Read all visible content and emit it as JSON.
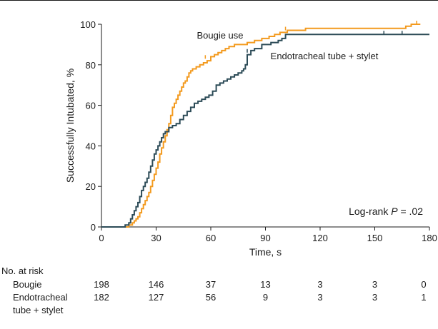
{
  "chart_data": {
    "type": "line",
    "subtype": "kaplan-meier",
    "xlabel": "Time, s",
    "ylabel": "Successfully Intubated, %",
    "xlim": [
      0,
      180
    ],
    "ylim": [
      0,
      100
    ],
    "x_ticks": [
      0,
      30,
      60,
      90,
      120,
      150,
      180
    ],
    "y_ticks": [
      0,
      20,
      40,
      60,
      80,
      100
    ],
    "grid": false,
    "annotation": {
      "prefix": "Log-rank ",
      "p_symbol": "P",
      "suffix": " = .02"
    },
    "colors": {
      "bougie": "#f39a1e",
      "stylet": "#2c4b57",
      "axis": "#1a1a1a"
    },
    "series": [
      {
        "key": "bougie",
        "name": "Bougie use",
        "points": [
          [
            0,
            0
          ],
          [
            14,
            0
          ],
          [
            15,
            1
          ],
          [
            17,
            2
          ],
          [
            18,
            3
          ],
          [
            19,
            4
          ],
          [
            20,
            5
          ],
          [
            21,
            7
          ],
          [
            22,
            9
          ],
          [
            23,
            11
          ],
          [
            24,
            13
          ],
          [
            25,
            15
          ],
          [
            26,
            17
          ],
          [
            27,
            20
          ],
          [
            28,
            23
          ],
          [
            29,
            26
          ],
          [
            30,
            29
          ],
          [
            31,
            32
          ],
          [
            32,
            36
          ],
          [
            33,
            39
          ],
          [
            34,
            42
          ],
          [
            35,
            45
          ],
          [
            36,
            48
          ],
          [
            37,
            51
          ],
          [
            38,
            55
          ],
          [
            39,
            59
          ],
          [
            40,
            61
          ],
          [
            41,
            63
          ],
          [
            42,
            65
          ],
          [
            43,
            67
          ],
          [
            44,
            69
          ],
          [
            45,
            71
          ],
          [
            46,
            72
          ],
          [
            47,
            74
          ],
          [
            48,
            76
          ],
          [
            49,
            77
          ],
          [
            50,
            78
          ],
          [
            52,
            79
          ],
          [
            54,
            80
          ],
          [
            56,
            81
          ],
          [
            58,
            82
          ],
          [
            60,
            84
          ],
          [
            62,
            85
          ],
          [
            64,
            86
          ],
          [
            66,
            87
          ],
          [
            68,
            88
          ],
          [
            70,
            89
          ],
          [
            73,
            90
          ],
          [
            76,
            90
          ],
          [
            80,
            91
          ],
          [
            84,
            92
          ],
          [
            88,
            93
          ],
          [
            92,
            94
          ],
          [
            95,
            95
          ],
          [
            98,
            96
          ],
          [
            102,
            97
          ],
          [
            106,
            97
          ],
          [
            112,
            98
          ],
          [
            120,
            98
          ],
          [
            130,
            98
          ],
          [
            140,
            98
          ],
          [
            150,
            98
          ],
          [
            160,
            98
          ],
          [
            167,
            99
          ],
          [
            170,
            100
          ],
          [
            175,
            100
          ]
        ],
        "censor_marks": [
          [
            57,
            83
          ],
          [
            101,
            97
          ],
          [
            173,
            100
          ]
        ]
      },
      {
        "key": "stylet",
        "name": "Endotracheal tube + stylet",
        "points": [
          [
            0,
            0
          ],
          [
            12,
            0
          ],
          [
            13,
            1
          ],
          [
            15,
            2
          ],
          [
            16,
            4
          ],
          [
            17,
            6
          ],
          [
            18,
            8
          ],
          [
            19,
            10
          ],
          [
            20,
            12
          ],
          [
            21,
            15
          ],
          [
            22,
            18
          ],
          [
            23,
            20
          ],
          [
            24,
            22
          ],
          [
            25,
            24
          ],
          [
            26,
            27
          ],
          [
            27,
            30
          ],
          [
            28,
            33
          ],
          [
            29,
            36
          ],
          [
            30,
            38
          ],
          [
            31,
            40
          ],
          [
            32,
            42
          ],
          [
            33,
            44
          ],
          [
            34,
            46
          ],
          [
            35,
            47
          ],
          [
            37,
            49
          ],
          [
            39,
            50
          ],
          [
            41,
            51
          ],
          [
            43,
            53
          ],
          [
            45,
            55
          ],
          [
            47,
            57
          ],
          [
            49,
            59
          ],
          [
            51,
            61
          ],
          [
            53,
            62
          ],
          [
            55,
            63
          ],
          [
            57,
            64
          ],
          [
            59,
            65
          ],
          [
            61,
            67
          ],
          [
            63,
            70
          ],
          [
            65,
            71
          ],
          [
            67,
            72
          ],
          [
            69,
            73
          ],
          [
            71,
            74
          ],
          [
            73,
            75
          ],
          [
            75,
            76
          ],
          [
            77,
            77
          ],
          [
            78,
            78
          ],
          [
            79,
            80
          ],
          [
            80,
            85
          ],
          [
            82,
            87
          ],
          [
            84,
            88
          ],
          [
            88,
            90
          ],
          [
            93,
            91
          ],
          [
            97,
            92
          ],
          [
            99,
            93
          ],
          [
            101,
            95
          ],
          [
            110,
            95
          ],
          [
            120,
            95
          ],
          [
            130,
            95
          ],
          [
            140,
            95
          ],
          [
            150,
            95
          ],
          [
            160,
            95
          ],
          [
            170,
            95
          ],
          [
            180,
            95
          ]
        ],
        "censor_marks": [
          [
            80,
            86
          ],
          [
            155,
            95
          ],
          [
            165,
            95
          ]
        ]
      }
    ],
    "risk_table": {
      "title": "No. at risk",
      "times": [
        0,
        30,
        60,
        90,
        120,
        150,
        180
      ],
      "rows": [
        {
          "label_lines": [
            "Bougie"
          ],
          "values": [
            "198",
            "146",
            "37",
            "13",
            "3",
            "3",
            "0"
          ]
        },
        {
          "label_lines": [
            "Endotracheal",
            "tube + stylet"
          ],
          "values": [
            "182",
            "127",
            "56",
            "9",
            "3",
            "3",
            "1"
          ]
        }
      ]
    }
  }
}
